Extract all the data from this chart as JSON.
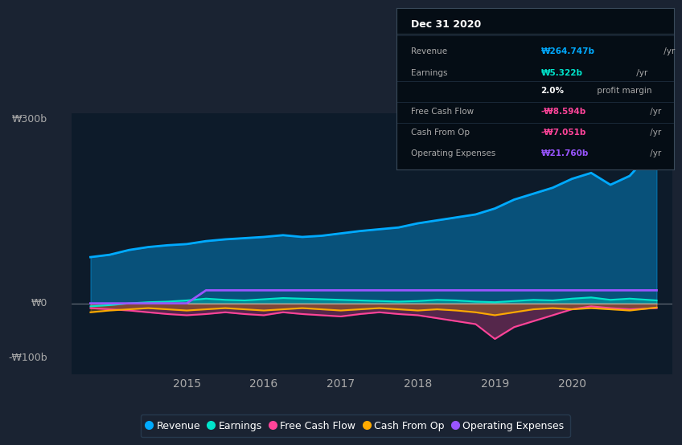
{
  "bg_color": "#1a2332",
  "plot_bg_color": "#0d1b2a",
  "y_label_300": "₩300b",
  "y_label_0": "₩0",
  "y_label_neg100": "-₩100b",
  "x_labels": [
    "2015",
    "2016",
    "2017",
    "2018",
    "2019",
    "2020"
  ],
  "ylim": [
    -120,
    320
  ],
  "xlim": [
    2013.5,
    2021.3
  ],
  "revenue_color": "#00aaff",
  "earnings_color": "#00e5cc",
  "fcf_color": "#ff4499",
  "cashop_color": "#ffaa00",
  "opex_color": "#9955ff",
  "legend_items": [
    {
      "label": "Revenue",
      "color": "#00aaff"
    },
    {
      "label": "Earnings",
      "color": "#00e5cc"
    },
    {
      "label": "Free Cash Flow",
      "color": "#ff4499"
    },
    {
      "label": "Cash From Op",
      "color": "#ffaa00"
    },
    {
      "label": "Operating Expenses",
      "color": "#9955ff"
    }
  ],
  "tooltip_title": "Dec 31 2020",
  "tooltip_rows": [
    {
      "label": "Revenue",
      "value": "₩264.747b",
      "suffix": " /yr",
      "value_color": "#00aaff",
      "divider_below": true
    },
    {
      "label": "Earnings",
      "value": "₩5.322b",
      "suffix": " /yr",
      "value_color": "#00e5cc",
      "divider_below": false
    },
    {
      "label": "",
      "value": "2.0%",
      "suffix": " profit margin",
      "value_color": "#ffffff",
      "divider_below": true
    },
    {
      "label": "Free Cash Flow",
      "value": "-₩8.594b",
      "suffix": " /yr",
      "value_color": "#ff4499",
      "divider_below": true
    },
    {
      "label": "Cash From Op",
      "value": "-₩7.051b",
      "suffix": " /yr",
      "value_color": "#ff4499",
      "divider_below": true
    },
    {
      "label": "Operating Expenses",
      "value": "₩21.760b",
      "suffix": " /yr",
      "value_color": "#9955ff",
      "divider_below": false
    }
  ],
  "revenue_x": [
    2013.75,
    2014.0,
    2014.25,
    2014.5,
    2014.75,
    2015.0,
    2015.25,
    2015.5,
    2015.75,
    2016.0,
    2016.25,
    2016.5,
    2016.75,
    2017.0,
    2017.25,
    2017.5,
    2017.75,
    2018.0,
    2018.25,
    2018.5,
    2018.75,
    2019.0,
    2019.25,
    2019.5,
    2019.75,
    2020.0,
    2020.25,
    2020.5,
    2020.75,
    2021.1
  ],
  "revenue_y": [
    78,
    82,
    90,
    95,
    98,
    100,
    105,
    108,
    110,
    112,
    115,
    112,
    114,
    118,
    122,
    125,
    128,
    135,
    140,
    145,
    150,
    160,
    175,
    185,
    195,
    210,
    220,
    200,
    215,
    265
  ],
  "earnings_x": [
    2013.75,
    2014.0,
    2014.25,
    2014.5,
    2014.75,
    2015.0,
    2015.25,
    2015.5,
    2015.75,
    2016.0,
    2016.25,
    2016.5,
    2016.75,
    2017.0,
    2017.25,
    2017.5,
    2017.75,
    2018.0,
    2018.25,
    2018.5,
    2018.75,
    2019.0,
    2019.25,
    2019.5,
    2019.75,
    2020.0,
    2020.25,
    2020.5,
    2020.75,
    2021.1
  ],
  "earnings_y": [
    -5,
    -3,
    0,
    2,
    3,
    5,
    8,
    6,
    5,
    7,
    9,
    8,
    7,
    6,
    5,
    4,
    3,
    4,
    6,
    5,
    3,
    2,
    4,
    6,
    5,
    8,
    10,
    6,
    8,
    5
  ],
  "fcf_x": [
    2013.75,
    2014.0,
    2014.25,
    2014.5,
    2014.75,
    2015.0,
    2015.25,
    2015.5,
    2015.75,
    2016.0,
    2016.25,
    2016.5,
    2016.75,
    2017.0,
    2017.25,
    2017.5,
    2017.75,
    2018.0,
    2018.25,
    2018.5,
    2018.75,
    2019.0,
    2019.25,
    2019.5,
    2019.75,
    2020.0,
    2020.25,
    2020.5,
    2020.75,
    2021.1
  ],
  "fcf_y": [
    -8,
    -10,
    -12,
    -15,
    -18,
    -20,
    -18,
    -15,
    -18,
    -20,
    -15,
    -18,
    -20,
    -22,
    -18,
    -15,
    -18,
    -20,
    -25,
    -30,
    -35,
    -60,
    -40,
    -30,
    -20,
    -10,
    -5,
    -8,
    -10,
    -8
  ],
  "cashop_x": [
    2013.75,
    2014.0,
    2014.25,
    2014.5,
    2014.75,
    2015.0,
    2015.25,
    2015.5,
    2015.75,
    2016.0,
    2016.25,
    2016.5,
    2016.75,
    2017.0,
    2017.25,
    2017.5,
    2017.75,
    2018.0,
    2018.25,
    2018.5,
    2018.75,
    2019.0,
    2019.25,
    2019.5,
    2019.75,
    2020.0,
    2020.25,
    2020.5,
    2020.75,
    2021.1
  ],
  "cashop_y": [
    -15,
    -12,
    -10,
    -8,
    -10,
    -12,
    -10,
    -8,
    -10,
    -12,
    -10,
    -8,
    -10,
    -12,
    -10,
    -8,
    -10,
    -12,
    -10,
    -12,
    -15,
    -20,
    -15,
    -10,
    -8,
    -10,
    -8,
    -10,
    -12,
    -7
  ],
  "opex_x": [
    2013.75,
    2014.0,
    2014.25,
    2014.5,
    2014.75,
    2015.0,
    2015.25,
    2015.5,
    2015.75,
    2016.0,
    2016.25,
    2016.5,
    2016.75,
    2017.0,
    2017.25,
    2017.5,
    2017.75,
    2018.0,
    2018.25,
    2018.5,
    2018.75,
    2019.0,
    2019.25,
    2019.5,
    2019.75,
    2020.0,
    2020.25,
    2020.5,
    2020.75,
    2021.1
  ],
  "opex_y": [
    0,
    0,
    0,
    0,
    0,
    0,
    22,
    22,
    22,
    22,
    22,
    22,
    22,
    22,
    22,
    22,
    22,
    22,
    22,
    22,
    22,
    22,
    22,
    22,
    22,
    22,
    22,
    22,
    22,
    22
  ]
}
